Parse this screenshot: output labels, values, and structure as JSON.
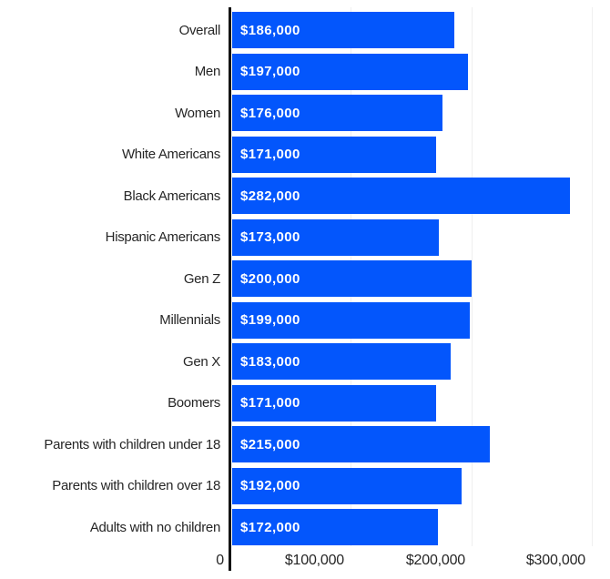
{
  "chart_data": {
    "type": "bar",
    "orientation": "horizontal",
    "title": "",
    "xlabel": "",
    "ylabel": "",
    "xlim": [
      0,
      313000
    ],
    "grid": "vertical-faint",
    "legend": "none",
    "categories": [
      "Overall",
      "Men",
      "Women",
      "White Americans",
      "Black Americans",
      "Hispanic Americans",
      "Gen Z",
      "Millennials",
      "Gen X",
      "Boomers",
      "Parents with children under 18",
      "Parents with children over 18",
      "Adults with no children"
    ],
    "values": [
      186000,
      197000,
      176000,
      171000,
      282000,
      173000,
      200000,
      199000,
      183000,
      171000,
      215000,
      192000,
      172000
    ],
    "value_labels": [
      "$186,000",
      "$197,000",
      "$176,000",
      "$171,000",
      "$282,000",
      "$173,000",
      "$200,000",
      "$199,000",
      "$183,000",
      "$171,000",
      "$215,000",
      "$192,000",
      "$172,000"
    ],
    "x_ticks": [
      {
        "label": "0",
        "value": 0
      },
      {
        "label": "$100,000",
        "value": 100000
      },
      {
        "label": "$200,000",
        "value": 200000
      },
      {
        "label": "$300,000",
        "value": 300000
      }
    ],
    "colors": {
      "bar": "#0356FC",
      "value_text": "#FFFFFF",
      "label_text": "#262626",
      "axis_line": "#141414",
      "gridline": "#EFEFEF",
      "background": "#FFFFFF"
    }
  }
}
